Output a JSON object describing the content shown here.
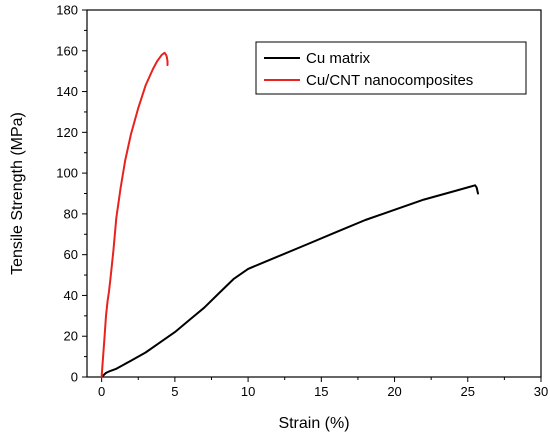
{
  "chart_data": {
    "type": "line",
    "title": "",
    "xlabel": "Strain (%)",
    "ylabel": "Tensile Strength (MPa)",
    "xlim": [
      -1,
      30
    ],
    "ylim": [
      0,
      180
    ],
    "xticks": [
      0,
      5,
      10,
      15,
      20,
      25,
      30
    ],
    "yticks": [
      0,
      20,
      40,
      60,
      80,
      100,
      120,
      140,
      160,
      180
    ],
    "grid": false,
    "legend_position": "top-right",
    "series": [
      {
        "name": "Cu matrix",
        "color": "#000000",
        "x": [
          0.0,
          0.3,
          0.6,
          1.0,
          1.5,
          2.0,
          3.0,
          4.0,
          5.0,
          6.0,
          7.0,
          8.0,
          9.0,
          10.0,
          11.0,
          12.0,
          14.0,
          16.0,
          18.0,
          20.0,
          22.0,
          24.0,
          25.0,
          25.5,
          25.6,
          25.7
        ],
        "y": [
          0,
          2,
          3,
          4,
          6,
          8,
          12,
          17,
          22,
          28,
          34,
          41,
          48,
          53,
          56,
          59,
          65,
          71,
          77,
          82,
          87,
          91,
          93,
          94,
          93,
          90
        ]
      },
      {
        "name": "Cu/CNT nanocomposites",
        "color": "#e8221d",
        "x": [
          0.0,
          0.1,
          0.2,
          0.3,
          0.4,
          0.5,
          0.6,
          0.8,
          1.0,
          1.3,
          1.6,
          2.0,
          2.5,
          3.0,
          3.5,
          3.8,
          4.1,
          4.3,
          4.4,
          4.45,
          4.5,
          4.5
        ],
        "y": [
          0,
          10,
          20,
          30,
          37,
          42,
          48,
          62,
          78,
          93,
          106,
          119,
          132,
          143,
          151,
          155,
          158,
          159,
          158,
          157,
          155,
          153
        ]
      }
    ]
  }
}
